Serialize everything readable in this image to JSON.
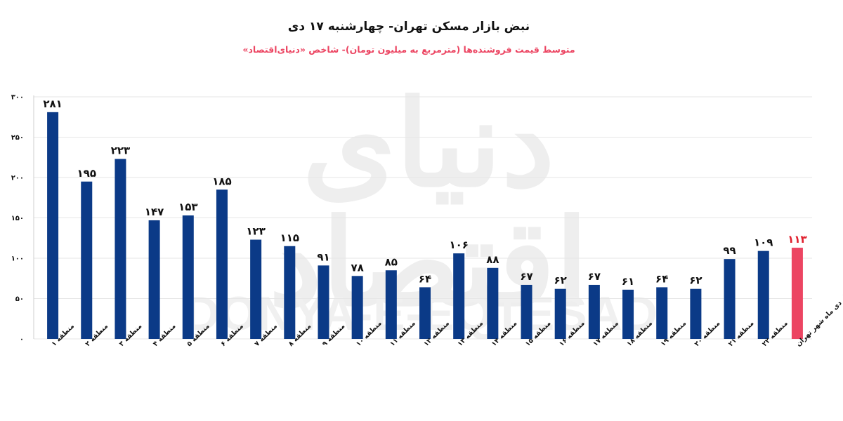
{
  "title": "نبض بازار مسکن تهران- چهارشنبه ۱۷ دی",
  "subtitle": "متوسط قیمت فروشنده‌ها (مترمربع به میلیون تومان)- شاخص «دنیای‌اقتصاد»",
  "watermark": {
    "fa": "دنیای اقتصاد",
    "en": "DONYA-E-EQTESAD"
  },
  "colors": {
    "bar": "#0b3a87",
    "highlight": "#ec4562",
    "subtitle": "#ec4562",
    "grid": "#e6e6e6",
    "highlight_label": "#e0202e"
  },
  "chart_data": {
    "type": "bar",
    "title": "نبض بازار مسکن تهران- چهارشنبه ۱۷ دی",
    "subtitle": "متوسط قیمت فروشنده‌ها (مترمربع به میلیون تومان)- شاخص «دنیای‌اقتصاد»",
    "categories": [
      "منطقه ۱",
      "منطقه ۲",
      "منطقه ۳",
      "منطقه ۴",
      "منطقه ۵",
      "منطقه ۶",
      "منطقه ۷",
      "منطقه ۸",
      "منطقه ۹",
      "منطقه ۱۰",
      "منطقه ۱۱",
      "منطقه ۱۲",
      "منطقه ۱۳",
      "منطقه ۱۴",
      "منطقه ۱۵",
      "منطقه ۱۶",
      "منطقه ۱۷",
      "منطقه ۱۸",
      "منطقه ۱۹",
      "منطقه ۲۰",
      "منطقه ۲۱",
      "منطقه ۲۲",
      "میانگین نیمه‌اول دی ماه شهر تهران"
    ],
    "values": [
      281,
      195,
      223,
      147,
      153,
      185,
      123,
      115,
      91,
      78,
      85,
      64,
      106,
      88,
      67,
      62,
      67,
      61,
      64,
      62,
      99,
      109,
      113
    ],
    "value_labels": [
      "۲۸۱",
      "۱۹۵",
      "۲۲۳",
      "۱۴۷",
      "۱۵۳",
      "۱۸۵",
      "۱۲۳",
      "۱۱۵",
      "۹۱",
      "۷۸",
      "۸۵",
      "۶۴",
      "۱۰۶",
      "۸۸",
      "۶۷",
      "۶۲",
      "۶۷",
      "۶۱",
      "۶۴",
      "۶۲",
      "۹۹",
      "۱۰۹",
      "۱۱۳"
    ],
    "highlight_index": 22,
    "ylim": [
      0,
      300
    ],
    "yticks": [
      0,
      50,
      100,
      150,
      200,
      250,
      300
    ],
    "ytick_labels": [
      "۰",
      "۵۰",
      "۱۰۰",
      "۱۵۰",
      "۲۰۰",
      "۲۵۰",
      "۳۰۰"
    ],
    "grid": true,
    "xlabel": "",
    "ylabel": ""
  }
}
